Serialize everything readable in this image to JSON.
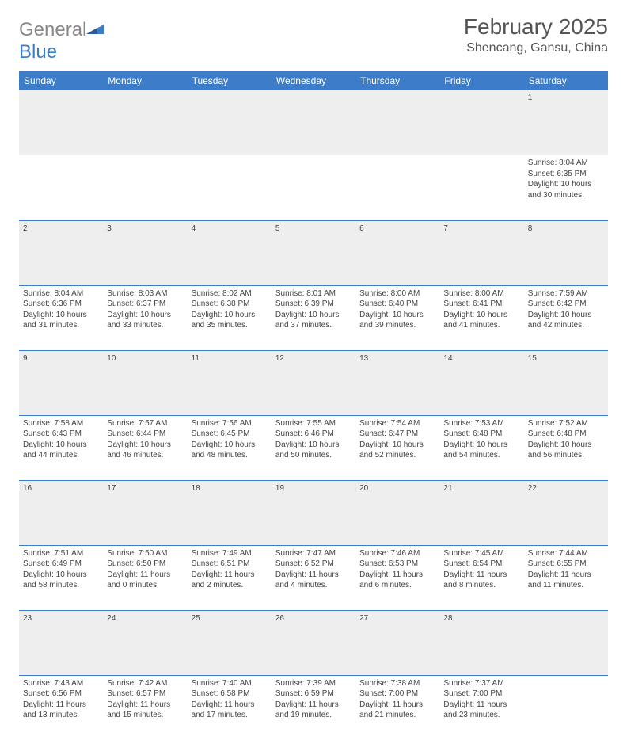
{
  "brand": {
    "text1": "General",
    "text2": "Blue"
  },
  "title": "February 2025",
  "location": "Shencang, Gansu, China",
  "colors": {
    "header_bg": "#3d7cc9",
    "header_text": "#ffffff",
    "daynum_bg": "#eeeeee",
    "body_text": "#444444",
    "rule": "#3d7cc9"
  },
  "weekdays": [
    "Sunday",
    "Monday",
    "Tuesday",
    "Wednesday",
    "Thursday",
    "Friday",
    "Saturday"
  ],
  "weeks": [
    [
      null,
      null,
      null,
      null,
      null,
      null,
      {
        "n": "1",
        "sr": "8:04 AM",
        "ss": "6:35 PM",
        "dl": "10 hours and 30 minutes."
      }
    ],
    [
      {
        "n": "2",
        "sr": "8:04 AM",
        "ss": "6:36 PM",
        "dl": "10 hours and 31 minutes."
      },
      {
        "n": "3",
        "sr": "8:03 AM",
        "ss": "6:37 PM",
        "dl": "10 hours and 33 minutes."
      },
      {
        "n": "4",
        "sr": "8:02 AM",
        "ss": "6:38 PM",
        "dl": "10 hours and 35 minutes."
      },
      {
        "n": "5",
        "sr": "8:01 AM",
        "ss": "6:39 PM",
        "dl": "10 hours and 37 minutes."
      },
      {
        "n": "6",
        "sr": "8:00 AM",
        "ss": "6:40 PM",
        "dl": "10 hours and 39 minutes."
      },
      {
        "n": "7",
        "sr": "8:00 AM",
        "ss": "6:41 PM",
        "dl": "10 hours and 41 minutes."
      },
      {
        "n": "8",
        "sr": "7:59 AM",
        "ss": "6:42 PM",
        "dl": "10 hours and 42 minutes."
      }
    ],
    [
      {
        "n": "9",
        "sr": "7:58 AM",
        "ss": "6:43 PM",
        "dl": "10 hours and 44 minutes."
      },
      {
        "n": "10",
        "sr": "7:57 AM",
        "ss": "6:44 PM",
        "dl": "10 hours and 46 minutes."
      },
      {
        "n": "11",
        "sr": "7:56 AM",
        "ss": "6:45 PM",
        "dl": "10 hours and 48 minutes."
      },
      {
        "n": "12",
        "sr": "7:55 AM",
        "ss": "6:46 PM",
        "dl": "10 hours and 50 minutes."
      },
      {
        "n": "13",
        "sr": "7:54 AM",
        "ss": "6:47 PM",
        "dl": "10 hours and 52 minutes."
      },
      {
        "n": "14",
        "sr": "7:53 AM",
        "ss": "6:48 PM",
        "dl": "10 hours and 54 minutes."
      },
      {
        "n": "15",
        "sr": "7:52 AM",
        "ss": "6:48 PM",
        "dl": "10 hours and 56 minutes."
      }
    ],
    [
      {
        "n": "16",
        "sr": "7:51 AM",
        "ss": "6:49 PM",
        "dl": "10 hours and 58 minutes."
      },
      {
        "n": "17",
        "sr": "7:50 AM",
        "ss": "6:50 PM",
        "dl": "11 hours and 0 minutes."
      },
      {
        "n": "18",
        "sr": "7:49 AM",
        "ss": "6:51 PM",
        "dl": "11 hours and 2 minutes."
      },
      {
        "n": "19",
        "sr": "7:47 AM",
        "ss": "6:52 PM",
        "dl": "11 hours and 4 minutes."
      },
      {
        "n": "20",
        "sr": "7:46 AM",
        "ss": "6:53 PM",
        "dl": "11 hours and 6 minutes."
      },
      {
        "n": "21",
        "sr": "7:45 AM",
        "ss": "6:54 PM",
        "dl": "11 hours and 8 minutes."
      },
      {
        "n": "22",
        "sr": "7:44 AM",
        "ss": "6:55 PM",
        "dl": "11 hours and 11 minutes."
      }
    ],
    [
      {
        "n": "23",
        "sr": "7:43 AM",
        "ss": "6:56 PM",
        "dl": "11 hours and 13 minutes."
      },
      {
        "n": "24",
        "sr": "7:42 AM",
        "ss": "6:57 PM",
        "dl": "11 hours and 15 minutes."
      },
      {
        "n": "25",
        "sr": "7:40 AM",
        "ss": "6:58 PM",
        "dl": "11 hours and 17 minutes."
      },
      {
        "n": "26",
        "sr": "7:39 AM",
        "ss": "6:59 PM",
        "dl": "11 hours and 19 minutes."
      },
      {
        "n": "27",
        "sr": "7:38 AM",
        "ss": "7:00 PM",
        "dl": "11 hours and 21 minutes."
      },
      {
        "n": "28",
        "sr": "7:37 AM",
        "ss": "7:00 PM",
        "dl": "11 hours and 23 minutes."
      },
      null
    ]
  ],
  "labels": {
    "sunrise": "Sunrise:",
    "sunset": "Sunset:",
    "daylight": "Daylight:"
  }
}
